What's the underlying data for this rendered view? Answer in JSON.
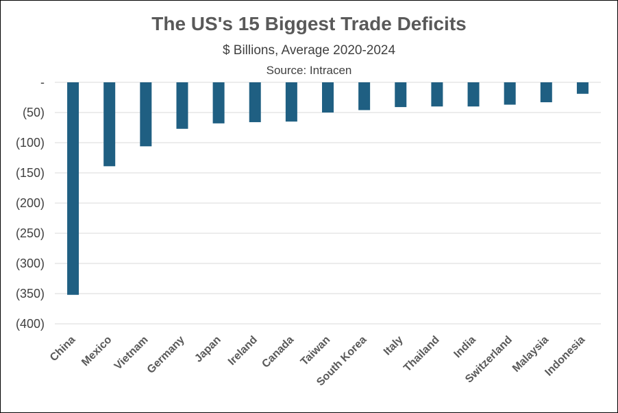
{
  "chart_data": {
    "type": "bar",
    "title": "The US's 15 Biggest Trade Deficits",
    "subtitle": "$ Billions, Average 2020-2024",
    "source": "Source: Intracen",
    "xlabel": "",
    "ylabel": "",
    "categories": [
      "China",
      "Mexico",
      "Vietnam",
      "Germany",
      "Japan",
      "Ireland",
      "Canada",
      "Taiwan",
      "South Korea",
      "Italy",
      "Thailand",
      "India",
      "Switzerland",
      "Malaysia",
      "Indonesia"
    ],
    "values": [
      -352,
      -139,
      -106,
      -77,
      -68,
      -66,
      -65,
      -50,
      -46,
      -41,
      -40,
      -40,
      -37,
      -33,
      -19
    ],
    "ylim": [
      -400,
      0
    ],
    "yticks": [
      0,
      -50,
      -100,
      -150,
      -200,
      -250,
      -300,
      -350,
      -400
    ],
    "ytick_labels": [
      "-",
      "(50)",
      "(100)",
      "(150)",
      "(200)",
      "(250)",
      "(300)",
      "(350)",
      "(400)"
    ],
    "grid": true,
    "bar_color": "#1F5F82",
    "grid_color": "#D9D9D9"
  }
}
